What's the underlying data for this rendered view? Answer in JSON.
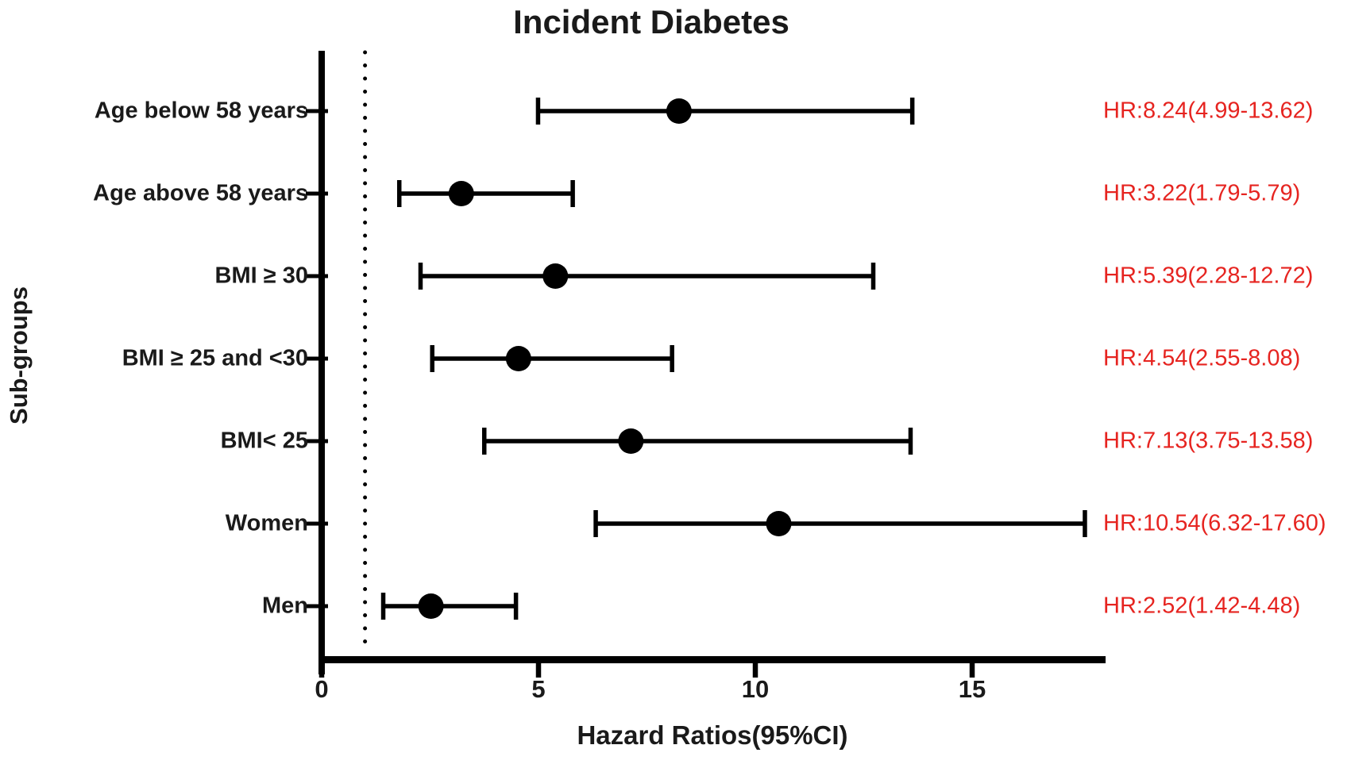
{
  "chart_data": {
    "type": "scatter",
    "subtype": "forest-plot",
    "title": "Incident Diabetes",
    "xlabel": "Hazard Ratios(95%CI)",
    "ylabel": "Sub-groups",
    "xlim": [
      0,
      18
    ],
    "x_ticks": [
      0,
      5,
      10,
      15
    ],
    "reference_line_x": 1,
    "reference_line_style": "dotted",
    "grid": false,
    "legend": false,
    "colors": {
      "ink": "#000000",
      "annotation_red": "#e62420",
      "background": "#ffffff"
    },
    "rows": [
      {
        "label": "Age below 58 years",
        "hr": 8.24,
        "ci_low": 4.99,
        "ci_high": 13.62,
        "hr_label": "HR:8.24(4.99-13.62)"
      },
      {
        "label": "Age above 58 years",
        "hr": 3.22,
        "ci_low": 1.79,
        "ci_high": 5.79,
        "hr_label": "HR:3.22(1.79-5.79)"
      },
      {
        "label": "BMI ≥ 30",
        "hr": 5.39,
        "ci_low": 2.28,
        "ci_high": 12.72,
        "hr_label": "HR:5.39(2.28-12.72)"
      },
      {
        "label": "BMI ≥ 25 and <30",
        "hr": 4.54,
        "ci_low": 2.55,
        "ci_high": 8.08,
        "hr_label": "HR:4.54(2.55-8.08)"
      },
      {
        "label": "BMI< 25",
        "hr": 7.13,
        "ci_low": 3.75,
        "ci_high": 13.58,
        "hr_label": "HR:7.13(3.75-13.58)"
      },
      {
        "label": "Women",
        "hr": 10.54,
        "ci_low": 6.32,
        "ci_high": 17.6,
        "hr_label": "HR:10.54(6.32-17.60)"
      },
      {
        "label": "Men",
        "hr": 2.52,
        "ci_low": 1.42,
        "ci_high": 4.48,
        "hr_label": "HR:2.52(1.42-4.48)"
      }
    ]
  }
}
